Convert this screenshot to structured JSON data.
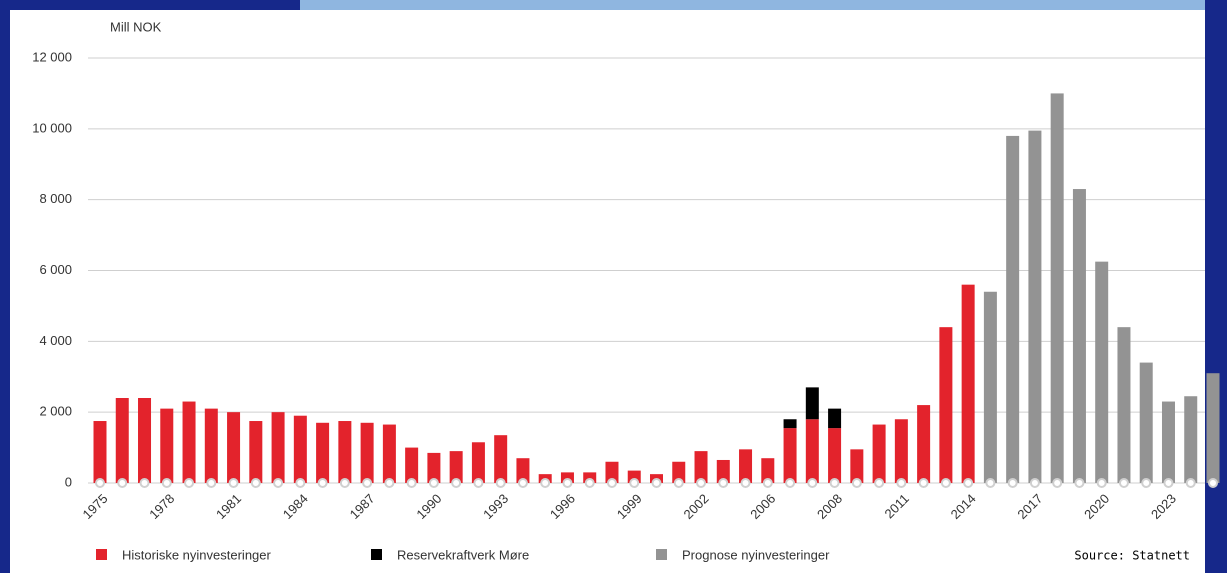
{
  "chart_data": {
    "type": "bar",
    "stacked": true,
    "y_label": "Mill NOK",
    "source": "Source: Statnett",
    "categories": [
      "1975",
      null,
      null,
      "1978",
      null,
      null,
      "1981",
      null,
      null,
      "1984",
      null,
      null,
      "1987",
      null,
      null,
      "1990",
      null,
      null,
      "1993",
      null,
      null,
      "1996",
      null,
      null,
      "1999",
      null,
      null,
      "2002",
      null,
      null,
      "2006",
      null,
      null,
      "2008",
      null,
      null,
      "2011",
      null,
      null,
      "2014",
      null,
      null,
      "2017",
      null,
      null,
      "2020",
      null,
      null,
      "2023",
      null,
      null
    ],
    "series": [
      {
        "name": "Historiske nyinvesteringer",
        "color": "#e3232c",
        "values": [
          1750,
          2400,
          2400,
          2100,
          2300,
          2100,
          2000,
          1750,
          2000,
          1900,
          1700,
          1750,
          1700,
          1650,
          1000,
          850,
          900,
          1150,
          1350,
          700,
          250,
          300,
          300,
          600,
          350,
          250,
          600,
          900,
          650,
          950,
          700,
          1550,
          1800,
          1550,
          950,
          1650,
          1800,
          2200,
          4400,
          5600,
          null,
          null,
          null,
          null,
          null,
          null,
          null,
          null,
          null,
          null,
          null
        ]
      },
      {
        "name": "Reservekraftverk Møre",
        "color": "#000000",
        "values": [
          null,
          null,
          null,
          null,
          null,
          null,
          null,
          null,
          null,
          null,
          null,
          null,
          null,
          null,
          null,
          null,
          null,
          null,
          null,
          null,
          null,
          null,
          null,
          null,
          null,
          null,
          null,
          null,
          null,
          null,
          null,
          250,
          900,
          550,
          null,
          null,
          null,
          null,
          null,
          null,
          null,
          null,
          null,
          null,
          null,
          null,
          null,
          null,
          null,
          null,
          null
        ]
      },
      {
        "name": "Prognose nyinvesteringer",
        "color": "#939393",
        "values": [
          null,
          null,
          null,
          null,
          null,
          null,
          null,
          null,
          null,
          null,
          null,
          null,
          null,
          null,
          null,
          null,
          null,
          null,
          null,
          null,
          null,
          null,
          null,
          null,
          null,
          null,
          null,
          null,
          null,
          null,
          null,
          null,
          null,
          null,
          null,
          null,
          null,
          null,
          null,
          null,
          5400,
          9800,
          9950,
          11000,
          8300,
          6250,
          4400,
          3400,
          2300,
          2450,
          3100
        ]
      }
    ],
    "ylim": [
      0,
      12000
    ],
    "yticks": [
      0,
      {
        "value": 2000,
        "label": "2 000"
      },
      {
        "value": 4000,
        "label": "4 000"
      },
      {
        "value": 6000,
        "label": "6 000"
      },
      {
        "value": 8000,
        "label": "8 000"
      },
      {
        "value": 10000,
        "label": "10 000"
      },
      {
        "value": 12000,
        "label": "12 000"
      }
    ],
    "grid": true
  }
}
